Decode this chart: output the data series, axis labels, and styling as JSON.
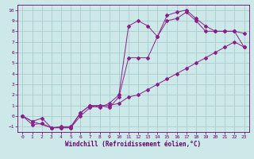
{
  "xlabel": "Windchill (Refroidissement éolien,°C)",
  "background_color": "#cce8e8",
  "grid_color": "#aacccc",
  "line_color": "#882288",
  "xlim": [
    -0.5,
    23.5
  ],
  "ylim": [
    -1.5,
    10.5
  ],
  "xticks": [
    0,
    1,
    2,
    3,
    4,
    5,
    6,
    7,
    8,
    9,
    10,
    11,
    12,
    13,
    14,
    15,
    16,
    17,
    18,
    19,
    20,
    21,
    22,
    23
  ],
  "yticks": [
    -1,
    0,
    1,
    2,
    3,
    4,
    5,
    6,
    7,
    8,
    9,
    10
  ],
  "line1_x": [
    0,
    1,
    2,
    3,
    4,
    5,
    6,
    7,
    8,
    9,
    10,
    11,
    12,
    13,
    14,
    15,
    16,
    17,
    18,
    19,
    20,
    21,
    22,
    23
  ],
  "line1_y": [
    0.0,
    -0.8,
    -0.7,
    -1.1,
    -1.1,
    -1.1,
    0.0,
    0.8,
    1.0,
    1.0,
    1.2,
    1.8,
    2.0,
    2.5,
    3.0,
    3.5,
    4.0,
    4.5,
    5.0,
    5.5,
    6.0,
    6.5,
    7.0,
    6.5
  ],
  "line2_x": [
    0,
    1,
    2,
    3,
    4,
    5,
    6,
    7,
    8,
    9,
    10,
    11,
    12,
    13,
    14,
    15,
    16,
    17,
    18,
    19,
    20,
    21,
    22,
    23
  ],
  "line2_y": [
    0.0,
    -0.5,
    -0.2,
    -1.1,
    -1.0,
    -1.0,
    0.3,
    1.0,
    1.0,
    0.8,
    1.8,
    5.5,
    5.5,
    5.5,
    7.5,
    9.0,
    9.2,
    9.8,
    9.0,
    8.0,
    8.0,
    8.0,
    8.0,
    7.8
  ],
  "line3_x": [
    0,
    1,
    3,
    4,
    5,
    6,
    7,
    8,
    9,
    10,
    11,
    12,
    13,
    14,
    15,
    16,
    17,
    18,
    19,
    20,
    21,
    22,
    23
  ],
  "line3_y": [
    0.0,
    -0.5,
    -1.1,
    -1.1,
    -1.1,
    0.3,
    1.0,
    0.8,
    1.2,
    2.0,
    8.5,
    9.0,
    8.5,
    7.5,
    9.5,
    9.8,
    10.0,
    9.2,
    8.5,
    8.0,
    8.0,
    8.0,
    6.5
  ]
}
